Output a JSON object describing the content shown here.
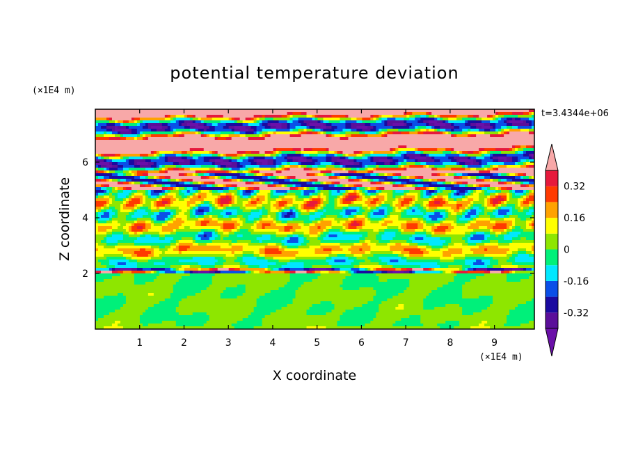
{
  "chart_data": {
    "type": "heatmap",
    "title": "potential temperature deviation",
    "xlabel": "X coordinate",
    "ylabel": "Z coordinate",
    "x_unit": "(×1E4 m)",
    "z_unit": "(×1E4 m)",
    "time_label": "t=3.4344e+06",
    "x_range": [
      0,
      9.9
    ],
    "z_range": [
      0,
      7.9
    ],
    "x_ticks": [
      1,
      2,
      3,
      4,
      5,
      6,
      7,
      8,
      9
    ],
    "z_ticks": [
      2,
      4,
      6
    ],
    "colorbar": {
      "levels": [
        -0.4,
        -0.32,
        -0.24,
        -0.16,
        -0.08,
        0,
        0.08,
        0.16,
        0.24,
        0.32,
        0.4
      ],
      "labels": [
        "0.32",
        "0.16",
        "0",
        "-0.16",
        "-0.32"
      ],
      "label_values": [
        0.32,
        0.16,
        0,
        -0.16,
        -0.32
      ],
      "colors": [
        "#5b0f9a",
        "#1a0aa0",
        "#0a4fe8",
        "#00e8ff",
        "#00f07a",
        "#8ee600",
        "#ffff00",
        "#ffa200",
        "#ff3a00",
        "#e6193c"
      ],
      "over_color": "#f8a8a8",
      "under_color": "#6a10a8"
    }
  }
}
